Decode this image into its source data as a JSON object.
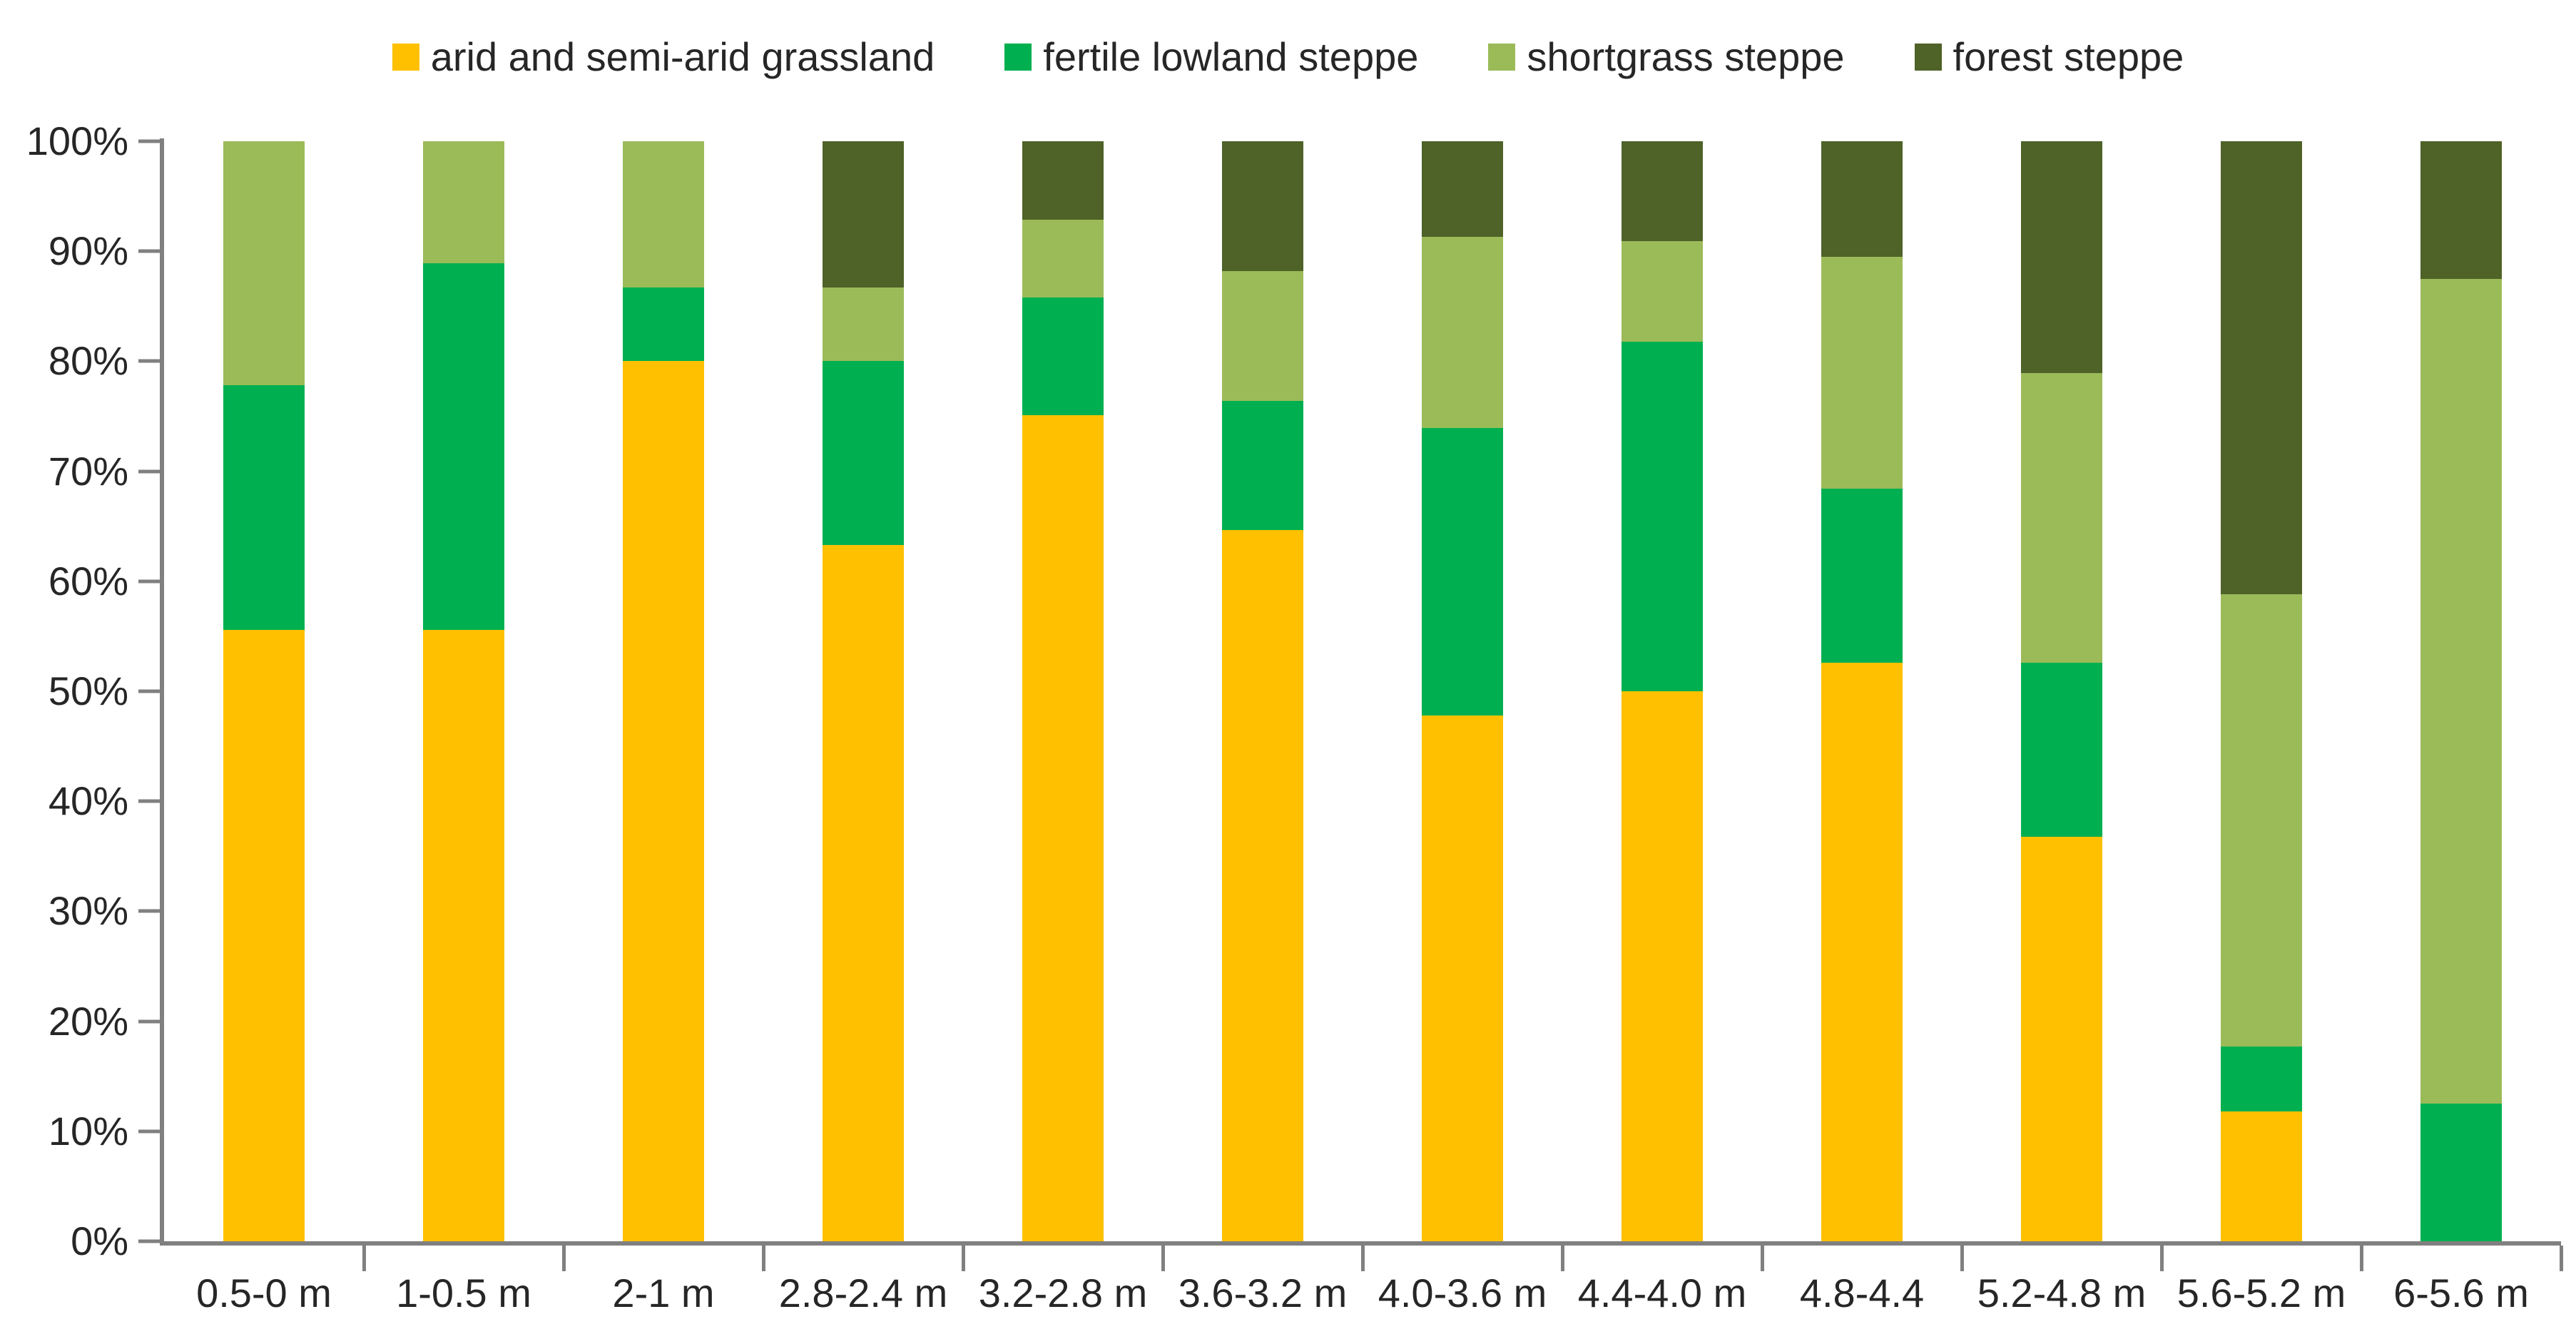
{
  "chart_data": {
    "type": "bar",
    "subtype": "stacked-100-percent-column",
    "title": "",
    "xlabel": "",
    "ylabel": "",
    "ylim": [
      0,
      100
    ],
    "grid": false,
    "legend_position": "top",
    "axis_color": "#808080",
    "text_color": "#262626",
    "background_color": "#ffffff",
    "y_tick_labels": [
      "0%",
      "10%",
      "20%",
      "30%",
      "40%",
      "50%",
      "60%",
      "70%",
      "80%",
      "90%",
      "100%"
    ],
    "categories": [
      "0.5-0 m",
      "1-0.5 m",
      "2-1 m",
      "2.8-2.4 m",
      "3.2-2.8 m",
      "3.6-3.2 m",
      "4.0-3.6 m",
      "4.4-4.0 m",
      "4.8-4.4",
      "5.2-4.8 m",
      "5.6-5.2 m",
      "6-5.6 m"
    ],
    "units": "percent of stack",
    "series": [
      {
        "name": "arid and semi-arid grassland",
        "color": "#FFC000",
        "values": [
          55.6,
          55.6,
          80.0,
          63.3,
          75.0,
          64.7,
          47.8,
          50.0,
          52.6,
          36.8,
          11.8,
          0.0
        ]
      },
      {
        "name": "fertile lowland steppe",
        "color": "#00B050",
        "values": [
          22.2,
          33.3,
          6.7,
          16.7,
          10.7,
          11.8,
          26.1,
          31.8,
          15.8,
          15.8,
          5.9,
          12.5
        ]
      },
      {
        "name": "shortgrass steppe",
        "color": "#9BBB59",
        "values": [
          22.2,
          11.1,
          13.3,
          6.7,
          7.1,
          11.8,
          17.4,
          9.1,
          21.1,
          26.3,
          41.2,
          75.0
        ]
      },
      {
        "name": "forest steppe",
        "color": "#4F6228",
        "values": [
          0.0,
          0.0,
          0.0,
          13.3,
          7.1,
          11.8,
          8.7,
          9.1,
          10.5,
          21.1,
          41.2,
          12.5
        ]
      }
    ]
  }
}
